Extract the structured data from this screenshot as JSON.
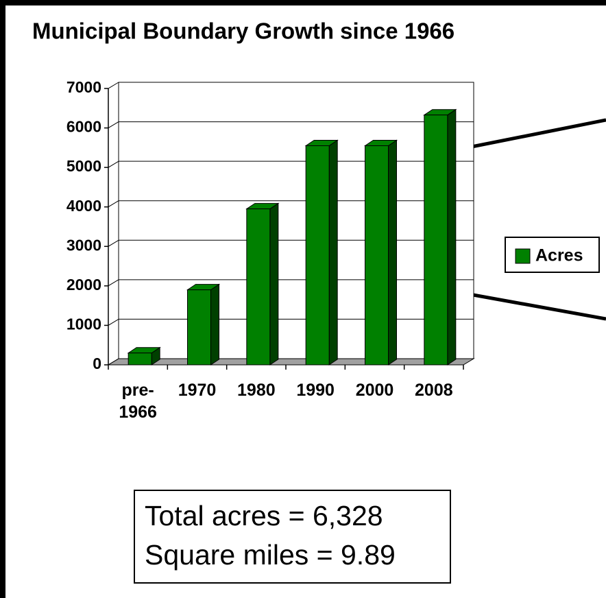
{
  "chart_data": {
    "type": "bar",
    "title": "Municipal Boundary Growth since 1966",
    "categories": [
      "pre-1966",
      "1970",
      "1980",
      "1990",
      "2000",
      "2008"
    ],
    "series": [
      {
        "name": "Acres",
        "color": "#008000",
        "values": [
          300,
          1900,
          3950,
          5550,
          5550,
          6328
        ]
      }
    ],
    "ylim": [
      0,
      7000
    ],
    "yticks": [
      0,
      1000,
      2000,
      3000,
      4000,
      5000,
      6000,
      7000
    ],
    "grid": true,
    "legend": "right",
    "annotations": [
      "Total acres = 6,328",
      "Square miles = 9.89"
    ]
  }
}
